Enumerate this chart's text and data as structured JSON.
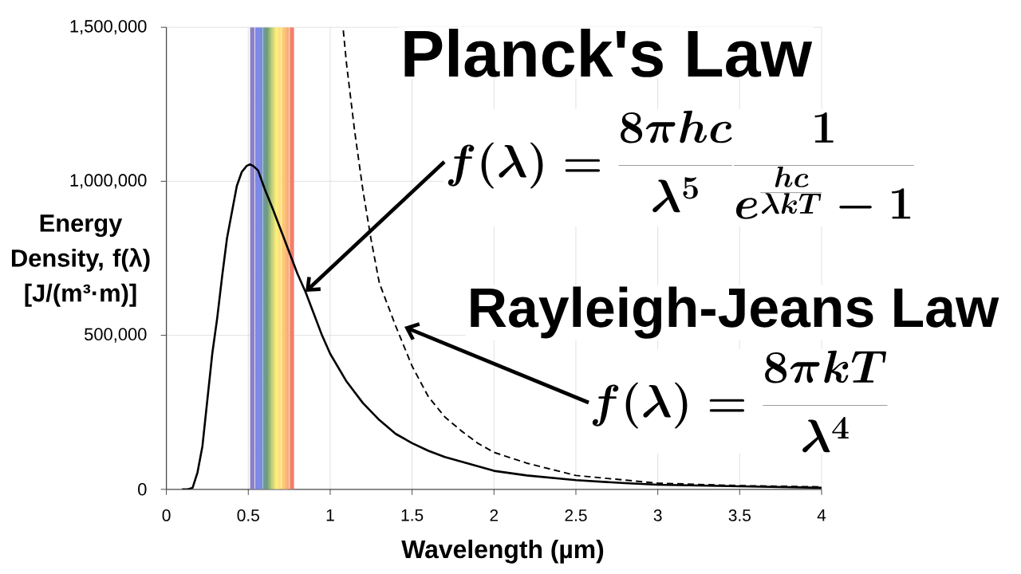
{
  "chart_data": {
    "type": "line",
    "xlabel": "Wavelength (µm)",
    "ylabel": "Energy Density, f(λ) [J/(m³·m)]",
    "xlim": [
      0,
      4
    ],
    "xticks": [
      0,
      0.5,
      1,
      1.5,
      2,
      2.5,
      3,
      3.5,
      4
    ],
    "ylim": [
      0,
      1500000
    ],
    "yticks": [
      0,
      {
        "value": 500000,
        "label": "500,000"
      },
      {
        "value": 1000000,
        "label": "1,000,000"
      },
      {
        "value": 1500000,
        "label": "1,500,000"
      }
    ],
    "grid": true,
    "series": [
      {
        "color": "#000000",
        "line_style": "solid",
        "x": [
          0.1,
          0.13,
          0.16,
          0.19,
          0.22,
          0.25,
          0.28,
          0.31,
          0.34,
          0.37,
          0.4,
          0.43,
          0.46,
          0.49,
          0.51,
          0.53,
          0.56,
          0.6,
          0.65,
          0.7,
          0.75,
          0.8,
          0.85,
          0.9,
          0.95,
          1.0,
          1.1,
          1.2,
          1.3,
          1.4,
          1.5,
          1.6,
          1.7,
          1.8,
          2.0,
          2.2,
          2.5,
          2.8,
          3.0,
          3.5,
          4.0
        ],
        "values": [
          0,
          0,
          5000,
          55000,
          140000,
          290000,
          440000,
          555000,
          690000,
          815000,
          900000,
          985000,
          1030000,
          1050000,
          1055000,
          1050000,
          1035000,
          975000,
          910000,
          840000,
          770000,
          700000,
          640000,
          570000,
          500000,
          440000,
          350000,
          280000,
          225000,
          180000,
          150000,
          125000,
          105000,
          90000,
          60000,
          45000,
          30000,
          20000,
          15000,
          10000,
          5000
        ]
      },
      {
        "color": "#000000",
        "line_style": "dashed",
        "x": [
          1.08,
          1.1,
          1.15,
          1.2,
          1.25,
          1.3,
          1.4,
          1.5,
          1.6,
          1.7,
          1.8,
          1.9,
          2.0,
          2.2,
          2.5,
          2.8,
          3.0,
          3.5,
          4.0
        ],
        "values": [
          1490000,
          1380000,
          1160000,
          970000,
          810000,
          670000,
          530000,
          400000,
          300000,
          235000,
          190000,
          150000,
          120000,
          85000,
          45000,
          30000,
          20000,
          12000,
          8000
        ]
      }
    ],
    "bands": [
      {
        "axis": "x",
        "from": 0.51,
        "to": 0.54,
        "color": "#8e7fc4"
      },
      {
        "axis": "x",
        "from": 0.54,
        "to": 0.59,
        "color": "#7a8af0"
      },
      {
        "axis": "x",
        "from": 0.59,
        "to": 0.64,
        "color": "#6c9e74"
      },
      {
        "axis": "x",
        "from": 0.64,
        "to": 0.7,
        "color": "#fdf07c"
      },
      {
        "axis": "x",
        "from": 0.7,
        "to": 0.75,
        "color": "#fcc07a"
      },
      {
        "axis": "x",
        "from": 0.75,
        "to": 0.78,
        "color": "#f17c70"
      }
    ],
    "annotations": [
      "Planck's Law",
      "f(\\lambda) = \\frac{8\\pi hc}{\\lambda^{5}}\\frac{1}{e^{\\frac{hc}{\\lambda kT}}-1}",
      "Rayleigh-Jeans Law",
      "f(\\lambda) = \\frac{8\\pi kT}{\\lambda^{4}}"
    ]
  }
}
